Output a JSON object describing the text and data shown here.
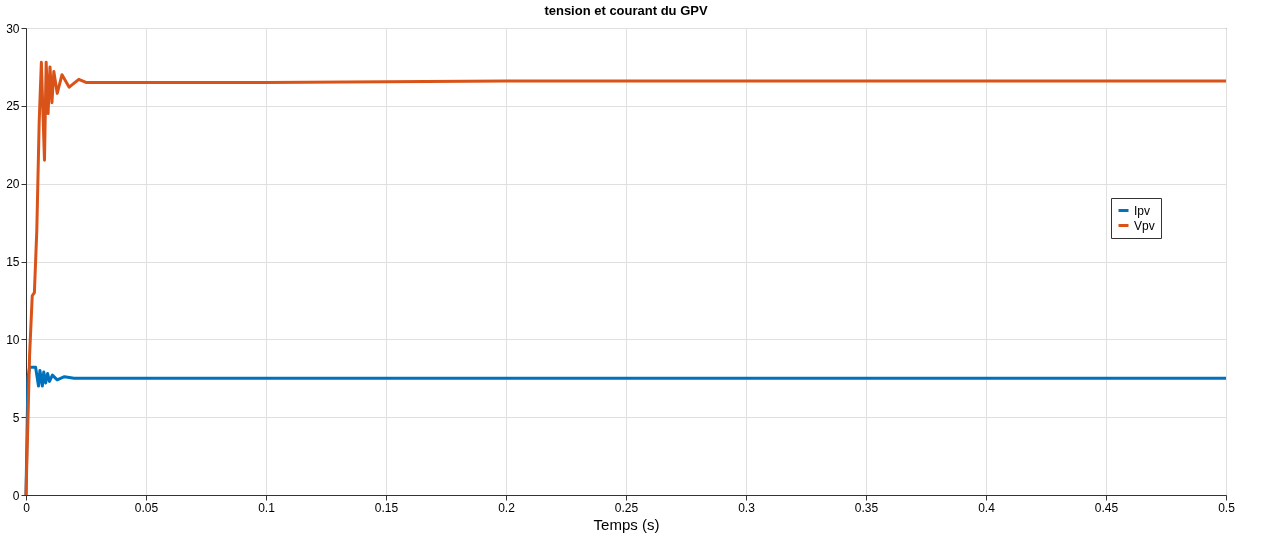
{
  "chart_data": {
    "type": "line",
    "title": "tension et courant du GPV",
    "xlabel": "Temps (s)",
    "xlim": [
      0,
      0.5
    ],
    "xticks": [
      0,
      0.05,
      0.1,
      0.15,
      0.2,
      0.25,
      0.3,
      0.35,
      0.4,
      0.45,
      0.5
    ],
    "ylim": [
      0,
      30
    ],
    "yticks": [
      0,
      5,
      10,
      15,
      20,
      25,
      30
    ],
    "grid": true,
    "legend": "right",
    "line_style": "solid",
    "marker": "none",
    "series": [
      {
        "name": "Ipv",
        "color": "#0072bd",
        "x": [
          0,
          0.0008,
          0.0015,
          0.004,
          0.0052,
          0.0058,
          0.0068,
          0.0074,
          0.0082,
          0.009,
          0.0098,
          0.011,
          0.013,
          0.016,
          0.02,
          0.03,
          0.1,
          0.2,
          0.3,
          0.4,
          0.5
        ],
        "values": [
          0,
          7.5,
          8.2,
          8.2,
          7.0,
          8.0,
          7.0,
          7.9,
          7.2,
          7.8,
          7.3,
          7.7,
          7.4,
          7.6,
          7.5,
          7.5,
          7.5,
          7.5,
          7.5,
          7.5,
          7.5
        ]
      },
      {
        "name": "Vpv",
        "color": "#d95319",
        "x": [
          0,
          0.0015,
          0.0026,
          0.0035,
          0.0045,
          0.0055,
          0.0064,
          0.0077,
          0.0084,
          0.0092,
          0.01,
          0.0108,
          0.0116,
          0.013,
          0.015,
          0.018,
          0.022,
          0.025,
          0.05,
          0.1,
          0.2,
          0.3,
          0.4,
          0.5
        ],
        "values": [
          0,
          9,
          12.8,
          13,
          17,
          24,
          27.8,
          21.5,
          27.8,
          24.5,
          27.5,
          25.2,
          27.2,
          25.8,
          27.0,
          26.2,
          26.7,
          26.5,
          26.5,
          26.5,
          26.6,
          26.6,
          26.6,
          26.6
        ]
      }
    ]
  }
}
